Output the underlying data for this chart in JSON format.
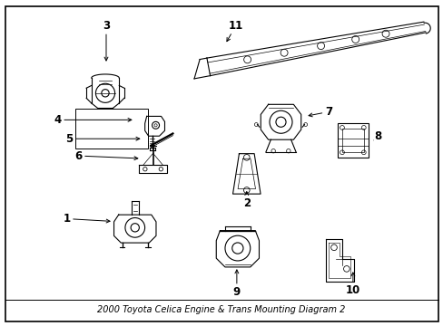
{
  "title": "2000 Toyota Celica Engine & Trans Mounting Diagram 2",
  "background_color": "#ffffff",
  "border_color": "#000000",
  "text_color": "#000000",
  "fig_width": 4.89,
  "fig_height": 3.6,
  "dpi": 100
}
